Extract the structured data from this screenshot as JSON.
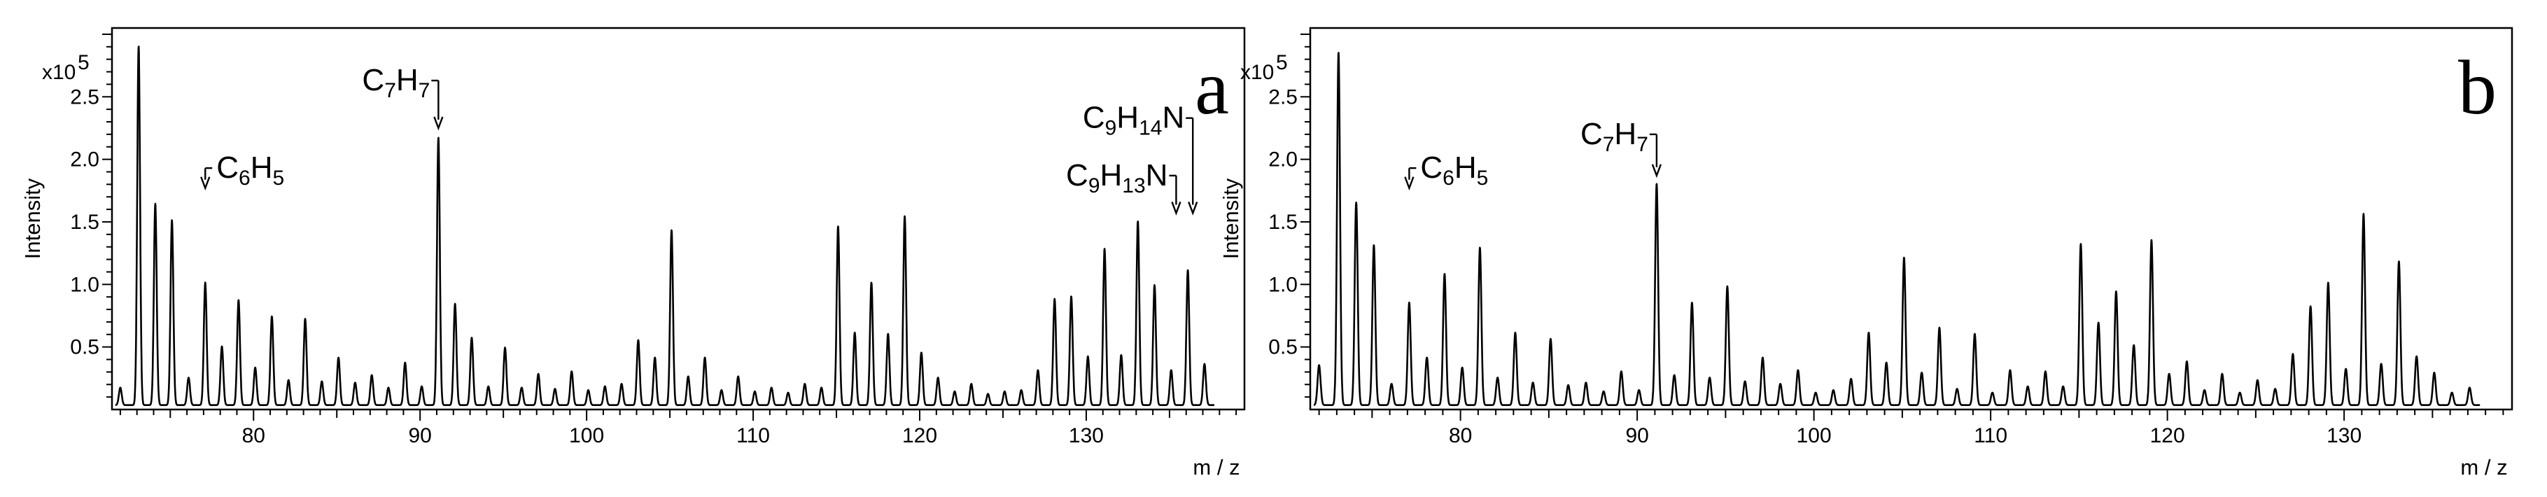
{
  "chart_data": [
    {
      "type": "line",
      "panel_label": "a",
      "title": "",
      "xlabel": "m / z",
      "ylabel": "Intensity",
      "y_scale_label": "x10",
      "y_scale_exponent": "5",
      "xlim": [
        71.5,
        139.5
      ],
      "ylim": [
        0,
        3.05
      ],
      "x_ticks": [
        80,
        90,
        100,
        110,
        120,
        130
      ],
      "y_ticks": [
        0.5,
        1.0,
        1.5,
        2.0,
        2.5
      ],
      "y_tick_labels": [
        "0.5",
        "1.0",
        "1.5",
        "2.0",
        "2.5"
      ],
      "grid": false,
      "peaks": [
        {
          "mz": 72.0,
          "y": 0.14
        },
        {
          "mz": 73.1,
          "y": 2.87
        },
        {
          "mz": 74.1,
          "y": 1.61
        },
        {
          "mz": 75.1,
          "y": 1.48
        },
        {
          "mz": 76.1,
          "y": 0.22
        },
        {
          "mz": 77.1,
          "y": 0.98
        },
        {
          "mz": 78.1,
          "y": 0.47
        },
        {
          "mz": 79.1,
          "y": 0.84
        },
        {
          "mz": 80.1,
          "y": 0.3
        },
        {
          "mz": 81.1,
          "y": 0.71
        },
        {
          "mz": 82.1,
          "y": 0.2
        },
        {
          "mz": 83.1,
          "y": 0.69
        },
        {
          "mz": 84.1,
          "y": 0.19
        },
        {
          "mz": 85.1,
          "y": 0.38
        },
        {
          "mz": 86.1,
          "y": 0.18
        },
        {
          "mz": 87.1,
          "y": 0.24
        },
        {
          "mz": 88.1,
          "y": 0.14
        },
        {
          "mz": 89.1,
          "y": 0.34
        },
        {
          "mz": 90.1,
          "y": 0.15
        },
        {
          "mz": 91.1,
          "y": 2.14
        },
        {
          "mz": 92.1,
          "y": 0.81
        },
        {
          "mz": 93.1,
          "y": 0.54
        },
        {
          "mz": 94.1,
          "y": 0.15
        },
        {
          "mz": 95.1,
          "y": 0.46
        },
        {
          "mz": 96.1,
          "y": 0.14
        },
        {
          "mz": 97.1,
          "y": 0.25
        },
        {
          "mz": 98.1,
          "y": 0.13
        },
        {
          "mz": 99.1,
          "y": 0.27
        },
        {
          "mz": 100.1,
          "y": 0.12
        },
        {
          "mz": 101.1,
          "y": 0.15
        },
        {
          "mz": 102.1,
          "y": 0.17
        },
        {
          "mz": 103.1,
          "y": 0.52
        },
        {
          "mz": 104.1,
          "y": 0.38
        },
        {
          "mz": 105.1,
          "y": 1.4
        },
        {
          "mz": 106.1,
          "y": 0.23
        },
        {
          "mz": 107.1,
          "y": 0.38
        },
        {
          "mz": 108.1,
          "y": 0.12
        },
        {
          "mz": 109.1,
          "y": 0.23
        },
        {
          "mz": 110.1,
          "y": 0.11
        },
        {
          "mz": 111.1,
          "y": 0.14
        },
        {
          "mz": 112.1,
          "y": 0.1
        },
        {
          "mz": 113.1,
          "y": 0.17
        },
        {
          "mz": 114.1,
          "y": 0.14
        },
        {
          "mz": 115.1,
          "y": 1.43
        },
        {
          "mz": 116.1,
          "y": 0.58
        },
        {
          "mz": 117.1,
          "y": 0.98
        },
        {
          "mz": 118.1,
          "y": 0.57
        },
        {
          "mz": 119.1,
          "y": 1.51
        },
        {
          "mz": 120.1,
          "y": 0.42
        },
        {
          "mz": 121.1,
          "y": 0.22
        },
        {
          "mz": 122.1,
          "y": 0.11
        },
        {
          "mz": 123.1,
          "y": 0.17
        },
        {
          "mz": 124.1,
          "y": 0.09
        },
        {
          "mz": 125.1,
          "y": 0.11
        },
        {
          "mz": 126.1,
          "y": 0.12
        },
        {
          "mz": 127.1,
          "y": 0.28
        },
        {
          "mz": 128.1,
          "y": 0.85
        },
        {
          "mz": 129.1,
          "y": 0.87
        },
        {
          "mz": 130.1,
          "y": 0.39
        },
        {
          "mz": 131.1,
          "y": 1.25
        },
        {
          "mz": 132.1,
          "y": 0.4
        },
        {
          "mz": 133.1,
          "y": 1.47
        },
        {
          "mz": 134.1,
          "y": 0.96
        },
        {
          "mz": 135.1,
          "y": 0.28
        },
        {
          "mz": 136.1,
          "y": 1.08
        },
        {
          "mz": 137.1,
          "y": 0.33
        }
      ],
      "annotations": [
        {
          "base": "C",
          "sub1": "6",
          "rest": "H",
          "sub2": "5",
          "arrow_mz": 77.1,
          "arrow_top": 1.93,
          "arrow_bottom": 1.77,
          "text_align": "left"
        },
        {
          "base": "C",
          "sub1": "7",
          "rest": "H",
          "sub2": "7",
          "arrow_mz": 91.1,
          "arrow_top": 2.63,
          "arrow_bottom": 2.25,
          "text_align": "right"
        },
        {
          "base": "C",
          "sub1": "9",
          "rest": "H",
          "sub2": "14",
          "tail": "N",
          "arrow_mz": 136.4,
          "arrow_top": 2.33,
          "arrow_bottom": 1.57,
          "text_align": "right"
        },
        {
          "base": "C",
          "sub1": "9",
          "rest": "H",
          "sub2": "13",
          "tail": "N",
          "arrow_mz": 135.4,
          "arrow_top": 1.87,
          "arrow_bottom": 1.57,
          "text_align": "right"
        }
      ]
    },
    {
      "type": "line",
      "panel_label": "b",
      "title": "",
      "xlabel": "m / z",
      "ylabel": "Intensity",
      "y_scale_label": "x10",
      "y_scale_exponent": "5",
      "xlim": [
        71.5,
        139.5
      ],
      "ylim": [
        0,
        3.05
      ],
      "x_ticks": [
        80,
        90,
        100,
        110,
        120,
        130
      ],
      "y_ticks": [
        0.5,
        1.0,
        1.5,
        2.0,
        2.5
      ],
      "y_tick_labels": [
        "0.5",
        "1.0",
        "1.5",
        "2.0",
        "2.5"
      ],
      "grid": false,
      "peaks": [
        {
          "mz": 72.0,
          "y": 0.32
        },
        {
          "mz": 73.1,
          "y": 2.82
        },
        {
          "mz": 74.1,
          "y": 1.62
        },
        {
          "mz": 75.1,
          "y": 1.28
        },
        {
          "mz": 76.1,
          "y": 0.17
        },
        {
          "mz": 77.1,
          "y": 0.82
        },
        {
          "mz": 78.1,
          "y": 0.38
        },
        {
          "mz": 79.1,
          "y": 1.05
        },
        {
          "mz": 80.1,
          "y": 0.3
        },
        {
          "mz": 81.1,
          "y": 1.26
        },
        {
          "mz": 82.1,
          "y": 0.22
        },
        {
          "mz": 83.1,
          "y": 0.58
        },
        {
          "mz": 84.1,
          "y": 0.18
        },
        {
          "mz": 85.1,
          "y": 0.53
        },
        {
          "mz": 86.1,
          "y": 0.16
        },
        {
          "mz": 87.1,
          "y": 0.18
        },
        {
          "mz": 88.1,
          "y": 0.11
        },
        {
          "mz": 89.1,
          "y": 0.27
        },
        {
          "mz": 90.1,
          "y": 0.12
        },
        {
          "mz": 91.1,
          "y": 1.77
        },
        {
          "mz": 92.1,
          "y": 0.24
        },
        {
          "mz": 93.1,
          "y": 0.82
        },
        {
          "mz": 94.1,
          "y": 0.22
        },
        {
          "mz": 95.1,
          "y": 0.95
        },
        {
          "mz": 96.1,
          "y": 0.19
        },
        {
          "mz": 97.1,
          "y": 0.38
        },
        {
          "mz": 98.1,
          "y": 0.17
        },
        {
          "mz": 99.1,
          "y": 0.28
        },
        {
          "mz": 100.1,
          "y": 0.1
        },
        {
          "mz": 101.1,
          "y": 0.12
        },
        {
          "mz": 102.1,
          "y": 0.21
        },
        {
          "mz": 103.1,
          "y": 0.58
        },
        {
          "mz": 104.1,
          "y": 0.34
        },
        {
          "mz": 105.1,
          "y": 1.18
        },
        {
          "mz": 106.1,
          "y": 0.26
        },
        {
          "mz": 107.1,
          "y": 0.62
        },
        {
          "mz": 108.1,
          "y": 0.13
        },
        {
          "mz": 109.1,
          "y": 0.57
        },
        {
          "mz": 110.1,
          "y": 0.1
        },
        {
          "mz": 111.1,
          "y": 0.28
        },
        {
          "mz": 112.1,
          "y": 0.15
        },
        {
          "mz": 113.1,
          "y": 0.27
        },
        {
          "mz": 114.1,
          "y": 0.15
        },
        {
          "mz": 115.1,
          "y": 1.29
        },
        {
          "mz": 116.1,
          "y": 0.66
        },
        {
          "mz": 117.1,
          "y": 0.91
        },
        {
          "mz": 118.1,
          "y": 0.48
        },
        {
          "mz": 119.1,
          "y": 1.32
        },
        {
          "mz": 120.1,
          "y": 0.25
        },
        {
          "mz": 121.1,
          "y": 0.35
        },
        {
          "mz": 122.1,
          "y": 0.12
        },
        {
          "mz": 123.1,
          "y": 0.25
        },
        {
          "mz": 124.1,
          "y": 0.1
        },
        {
          "mz": 125.1,
          "y": 0.2
        },
        {
          "mz": 126.1,
          "y": 0.13
        },
        {
          "mz": 127.1,
          "y": 0.41
        },
        {
          "mz": 128.1,
          "y": 0.79
        },
        {
          "mz": 129.1,
          "y": 0.98
        },
        {
          "mz": 130.1,
          "y": 0.29
        },
        {
          "mz": 131.1,
          "y": 1.53
        },
        {
          "mz": 132.1,
          "y": 0.33
        },
        {
          "mz": 133.1,
          "y": 1.15
        },
        {
          "mz": 134.1,
          "y": 0.39
        },
        {
          "mz": 135.1,
          "y": 0.26
        },
        {
          "mz": 136.1,
          "y": 0.1
        },
        {
          "mz": 137.1,
          "y": 0.14
        }
      ],
      "annotations": [
        {
          "base": "C",
          "sub1": "6",
          "rest": "H",
          "sub2": "5",
          "arrow_mz": 77.1,
          "arrow_top": 1.93,
          "arrow_bottom": 1.77,
          "text_align": "left"
        },
        {
          "base": "C",
          "sub1": "7",
          "rest": "H",
          "sub2": "7",
          "arrow_mz": 91.1,
          "arrow_top": 2.2,
          "arrow_bottom": 1.87,
          "text_align": "right"
        }
      ]
    }
  ]
}
